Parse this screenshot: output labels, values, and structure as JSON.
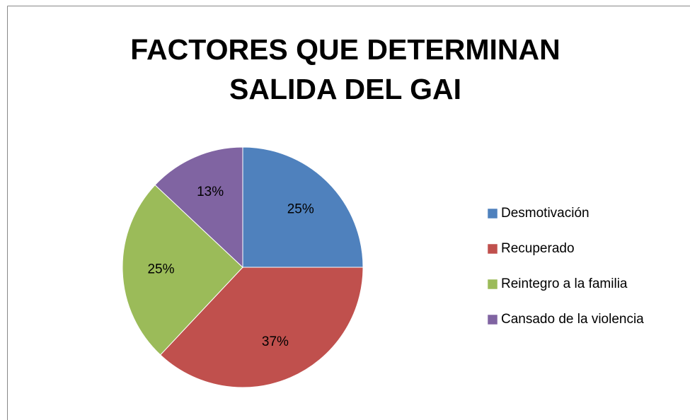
{
  "chart_data": {
    "type": "pie",
    "title": "FACTORES QUE DETERMINAN SALIDA DEL GAI",
    "categories": [
      "Desmotivación",
      "Recuperado",
      "Reintegro a la familia",
      "Cansado de la violencia"
    ],
    "values": [
      25,
      37,
      25,
      13
    ],
    "value_labels": [
      "25%",
      "37%",
      "25%",
      "13%"
    ],
    "colors": [
      "#4f81bd",
      "#c0504d",
      "#9bbb59",
      "#8064a2"
    ],
    "legend": "right"
  }
}
